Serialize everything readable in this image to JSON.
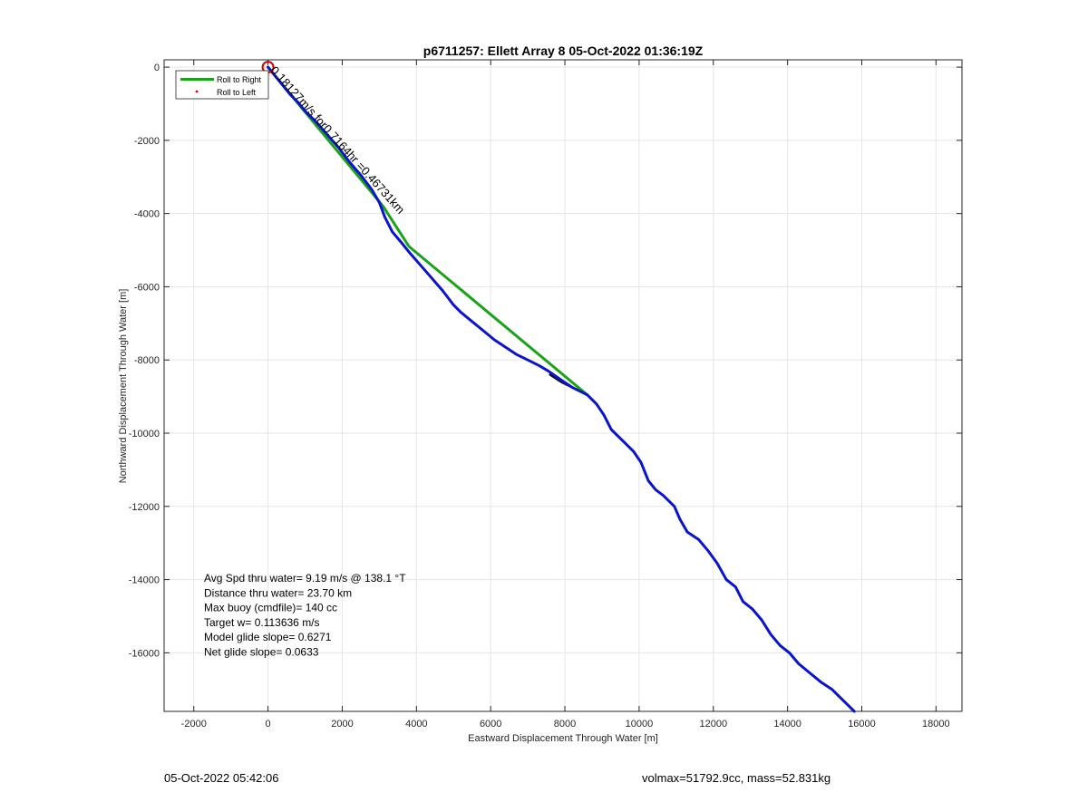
{
  "chart_data": {
    "type": "line",
    "title": "p6711257: Ellett Array 8 05-Oct-2022 01:36:19Z",
    "xlabel": "Eastward Displacement Through Water [m]",
    "ylabel": "Northward Displacement Through Water [m]",
    "xlim": [
      -2800,
      18700
    ],
    "ylim": [
      -17600,
      200
    ],
    "xticks": [
      -2000,
      0,
      2000,
      4000,
      6000,
      8000,
      10000,
      12000,
      14000,
      16000,
      18000
    ],
    "yticks": [
      0,
      -2000,
      -4000,
      -6000,
      -8000,
      -10000,
      -12000,
      -14000,
      -16000
    ],
    "grid": true,
    "legend": {
      "location": "top-left",
      "entries": [
        "Roll to Right",
        "Roll to Left"
      ]
    },
    "series": [
      {
        "name": "Roll to Right",
        "color": "#1aa31a",
        "x": [
          0,
          3100,
          3800,
          8600
        ],
        "y": [
          0,
          -3800,
          -4900,
          -8950
        ]
      },
      {
        "name": "Roll to Left",
        "color": "#e00000",
        "x": [],
        "y": []
      },
      {
        "color": "#111111",
        "x": [
          7600,
          7900,
          8200,
          8600
        ],
        "y": [
          -8400,
          -8600,
          -8750,
          -8950
        ]
      },
      {
        "color": "#0a14c8",
        "x": [
          0,
          200,
          400,
          600,
          800,
          1000,
          1300,
          1600,
          1900,
          2200,
          2500,
          2800,
          3000,
          3150,
          3350,
          3600,
          3800,
          4100,
          4400,
          4700,
          5000,
          5200,
          5500,
          5800,
          6100,
          6400,
          6700,
          7000,
          7300,
          7550,
          7900,
          8200,
          8600,
          8850,
          9050,
          9250,
          9550,
          9850,
          10050,
          10250,
          10450,
          10650,
          10950,
          11100,
          11300,
          11600,
          11850,
          12100,
          12350,
          12600,
          12800,
          13050,
          13300,
          13550,
          13800,
          14050,
          14300,
          14600,
          14900,
          15200,
          15500,
          15800
        ],
        "y": [
          0,
          -250,
          -500,
          -750,
          -950,
          -1200,
          -1500,
          -1850,
          -2200,
          -2600,
          -2950,
          -3350,
          -3700,
          -4100,
          -4500,
          -4800,
          -5050,
          -5400,
          -5750,
          -6100,
          -6500,
          -6700,
          -6950,
          -7200,
          -7450,
          -7650,
          -7850,
          -8000,
          -8150,
          -8300,
          -8550,
          -8750,
          -8950,
          -9200,
          -9500,
          -9900,
          -10200,
          -10500,
          -10800,
          -11300,
          -11550,
          -11700,
          -12000,
          -12350,
          -12700,
          -12900,
          -13200,
          -13550,
          -14000,
          -14200,
          -14600,
          -14800,
          -15100,
          -15500,
          -15800,
          -16000,
          -16300,
          -16550,
          -16800,
          -17000,
          -17300,
          -17600
        ]
      }
    ],
    "start_marker": {
      "x": 0,
      "y": 0,
      "color": "#cc0000"
    },
    "annotation": {
      "text": "0.18127m/s for0.7164hr =0.46731km",
      "x": 0,
      "y": 0,
      "angle_deg": 48
    },
    "stats": [
      "Avg Spd thru water=  9.19 m/s @ 138.1 °T",
      "Distance thru water= 23.70 km",
      "Max buoy (cmdfile)= 140 cc",
      "Target w= 0.113636 m/s",
      "Model glide slope= 0.6271",
      "Net glide slope= 0.0633"
    ]
  },
  "footer": {
    "date": "05-Oct-2022 05:42:06",
    "vol_mass": "volmax=51792.9cc, mass=52.831kg"
  }
}
